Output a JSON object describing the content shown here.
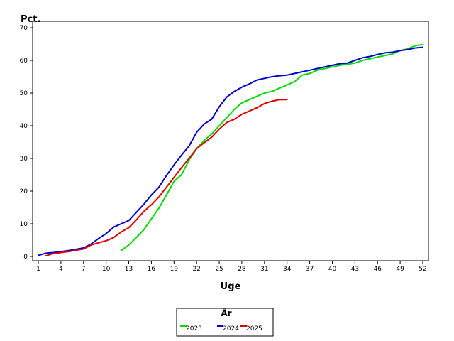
{
  "chart_data": {
    "type": "line",
    "title": "",
    "xlabel": "Uge",
    "ylabel": "Pct.",
    "xlim": [
      1,
      52
    ],
    "ylim": [
      0,
      70
    ],
    "x_ticks": [
      1,
      4,
      7,
      10,
      13,
      16,
      19,
      22,
      25,
      28,
      31,
      34,
      37,
      40,
      43,
      46,
      49,
      52
    ],
    "y_ticks": [
      0,
      10,
      20,
      30,
      40,
      50,
      60,
      70
    ],
    "grid": false,
    "legend": {
      "title": "År",
      "placement": "bottom-center"
    },
    "series": [
      {
        "name": "2023",
        "color": "#00dd00",
        "x": [
          12,
          13,
          14,
          15,
          16,
          17,
          18,
          19,
          20,
          21,
          22,
          23,
          24,
          25,
          26,
          27,
          28,
          29,
          30,
          31,
          32,
          33,
          34,
          35,
          36,
          37,
          38,
          39,
          40,
          41,
          42,
          43,
          44,
          45,
          46,
          47,
          48,
          49,
          50,
          51,
          52
        ],
        "values": [
          1.8,
          3.5,
          5.8,
          8.2,
          11.5,
          14.8,
          18.8,
          23.0,
          25.0,
          29.5,
          33.0,
          35.5,
          37.5,
          40.0,
          42.5,
          45.0,
          47.0,
          48.0,
          49.0,
          50.0,
          50.5,
          51.5,
          52.5,
          53.5,
          55.5,
          56.0,
          57.0,
          57.5,
          58.0,
          58.5,
          58.8,
          59.2,
          60.0,
          60.5,
          61.0,
          61.5,
          62.0,
          63.0,
          63.5,
          64.5,
          64.8
        ]
      },
      {
        "name": "2024",
        "color": "#0000cc",
        "x": [
          1,
          2,
          3,
          4,
          5,
          6,
          7,
          8,
          9,
          10,
          11,
          12,
          13,
          14,
          15,
          16,
          17,
          18,
          19,
          20,
          21,
          22,
          23,
          24,
          25,
          26,
          27,
          28,
          29,
          30,
          31,
          32,
          33,
          34,
          35,
          36,
          37,
          38,
          39,
          40,
          41,
          42,
          43,
          44,
          45,
          46,
          47,
          48,
          49,
          50,
          51,
          52
        ],
        "values": [
          0.3,
          1.0,
          1.2,
          1.5,
          1.8,
          2.2,
          2.6,
          3.8,
          5.5,
          7.0,
          9.0,
          10.0,
          11.0,
          13.5,
          16.0,
          18.8,
          21.2,
          24.8,
          28.0,
          31.0,
          33.8,
          38.0,
          40.5,
          42.0,
          45.8,
          48.8,
          50.5,
          51.8,
          52.8,
          54.0,
          54.5,
          55.0,
          55.3,
          55.5,
          56.0,
          56.5,
          57.0,
          57.5,
          58.0,
          58.5,
          59.0,
          59.2,
          60.0,
          60.8,
          61.2,
          61.8,
          62.3,
          62.5,
          63.0,
          63.3,
          63.8,
          64.0
        ]
      },
      {
        "name": "2025",
        "color": "#dd0000",
        "x": [
          2,
          3,
          4,
          5,
          6,
          7,
          8,
          9,
          10,
          11,
          12,
          13,
          14,
          15,
          16,
          17,
          18,
          19,
          20,
          21,
          22,
          23,
          24,
          25,
          26,
          27,
          28,
          29,
          30,
          31,
          32,
          33,
          34
        ],
        "values": [
          0.2,
          0.9,
          1.2,
          1.5,
          1.9,
          2.3,
          3.5,
          4.2,
          4.8,
          5.8,
          7.5,
          8.8,
          11.2,
          13.8,
          15.8,
          18.2,
          21.2,
          24.2,
          27.2,
          30.0,
          33.0,
          34.8,
          36.5,
          39.0,
          41.0,
          42.0,
          43.5,
          44.5,
          45.5,
          46.8,
          47.5,
          48.0,
          48.0
        ]
      }
    ]
  }
}
